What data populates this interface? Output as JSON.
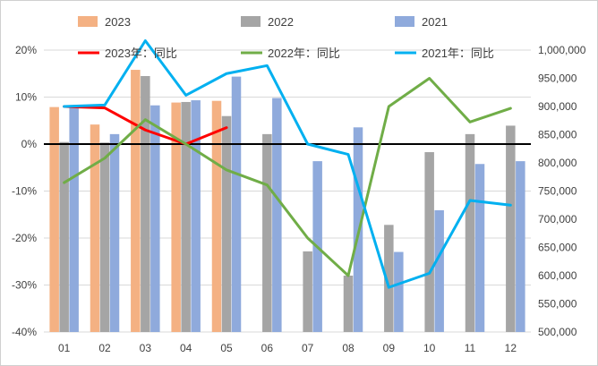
{
  "chart_data": {
    "type": "bar",
    "categories": [
      "01",
      "02",
      "03",
      "04",
      "05",
      "06",
      "07",
      "08",
      "09",
      "10",
      "11",
      "12"
    ],
    "y_left": {
      "min": -0.4,
      "max": 0.2,
      "ticks": [
        0.2,
        0.1,
        0.0,
        -0.1,
        -0.2,
        -0.3,
        -0.4
      ],
      "tick_labels": [
        "20%",
        "10%",
        "0%",
        "-10%",
        "-20%",
        "-30%",
        "-40%"
      ]
    },
    "y_right": {
      "min": 500000,
      "max": 1000000,
      "ticks": [
        1000000,
        950000,
        900000,
        850000,
        800000,
        750000,
        700000,
        650000,
        600000,
        550000,
        500000
      ],
      "tick_labels": [
        "1,000,000",
        "950,000",
        "900,000",
        "850,000",
        "800,000",
        "750,000",
        "700,000",
        "650,000",
        "600,000",
        "550,000",
        "500,000"
      ]
    },
    "bar_series": [
      {
        "name": "2023",
        "color": "#f4b183",
        "values": [
          899000,
          868000,
          965000,
          907000,
          910000,
          null,
          null,
          null,
          null,
          null,
          null,
          null
        ]
      },
      {
        "name": "2022",
        "color": "#a5a5a5",
        "values": [
          837000,
          836000,
          954000,
          908000,
          883000,
          851000,
          643000,
          600000,
          690000,
          819000,
          851000,
          866000
        ]
      },
      {
        "name": "2021",
        "color": "#8faadc",
        "values": [
          898000,
          851000,
          902000,
          911000,
          953000,
          915000,
          803000,
          863000,
          642000,
          716000,
          798000,
          803000
        ]
      }
    ],
    "line_series": [
      {
        "name": "2023年：同比",
        "color": "#ff0000",
        "values": [
          0.08,
          0.077,
          0.03,
          0.0,
          0.035,
          null,
          null,
          null,
          null,
          null,
          null,
          null
        ]
      },
      {
        "name": "2022年：同比",
        "color": "#70ad47",
        "values": [
          -0.082,
          -0.03,
          0.052,
          0.0,
          -0.055,
          -0.087,
          -0.2,
          -0.28,
          0.08,
          0.14,
          0.047,
          0.076
        ]
      },
      {
        "name": "2021年：同比",
        "color": "#00b0f0",
        "values": [
          0.08,
          0.083,
          0.22,
          0.104,
          0.15,
          0.167,
          0.0,
          -0.022,
          -0.305,
          -0.275,
          -0.12,
          -0.13
        ]
      }
    ],
    "zero_line_color": "#000000",
    "legend": {
      "placement": "top"
    }
  }
}
